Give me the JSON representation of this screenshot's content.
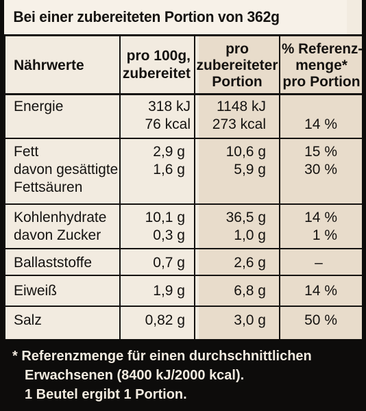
{
  "header": {
    "title": "Bei einer zubereiteten Portion von 362g"
  },
  "columns": {
    "nutrient": "Nährwerte",
    "per100_line1": "pro 100g,",
    "per100_line2": "zubereitet",
    "portion_line1": "pro",
    "portion_line2": "zubereiteter",
    "portion_line3": "Portion",
    "ref_line1": "% Referenz-",
    "ref_line2": "menge*",
    "ref_line3": "pro Portion"
  },
  "rows": {
    "energie": {
      "label": "Energie",
      "kj100": "318 kJ",
      "kcal100": "76 kcal",
      "kjPortion": "1148 kJ",
      "kcalPortion": "273 kcal",
      "ref": "14 %"
    },
    "fett": {
      "label": "Fett",
      "p100": "2,9 g",
      "portion": "10,6 g",
      "ref": "15 %"
    },
    "gesaettigt": {
      "label1": "davon gesättigte",
      "label2": "Fettsäuren",
      "p100": "1,6 g",
      "portion": "5,9 g",
      "ref": "30 %"
    },
    "kohlenhydrate": {
      "label": "Kohlenhydrate",
      "p100": "10,1 g",
      "portion": "36,5 g",
      "ref": "14 %"
    },
    "zucker": {
      "label": "davon Zucker",
      "p100": "0,3 g",
      "portion": "1,0 g",
      "ref": "1 %"
    },
    "ballaststoffe": {
      "label": "Ballaststoffe",
      "p100": "0,7 g",
      "portion": "2,6 g",
      "ref": "–"
    },
    "eiweiss": {
      "label": "Eiweiß",
      "p100": "1,9 g",
      "portion": "6,8 g",
      "ref": "14 %"
    },
    "salz": {
      "label": "Salz",
      "p100": "0,82 g",
      "portion": "3,0 g",
      "ref": "50 %"
    }
  },
  "footnote": {
    "line1": "* Referenzmenge für einen durchschnittlichen",
    "line2": "Erwachsenen (8400 kJ/2000 kcal).",
    "line3": "1 Beutel ergibt 1 Portion."
  },
  "colors": {
    "background": "#f2ebe0",
    "shaded_column": "#e8dccb",
    "ink": "#141210",
    "footer": "#0d0c0b"
  }
}
